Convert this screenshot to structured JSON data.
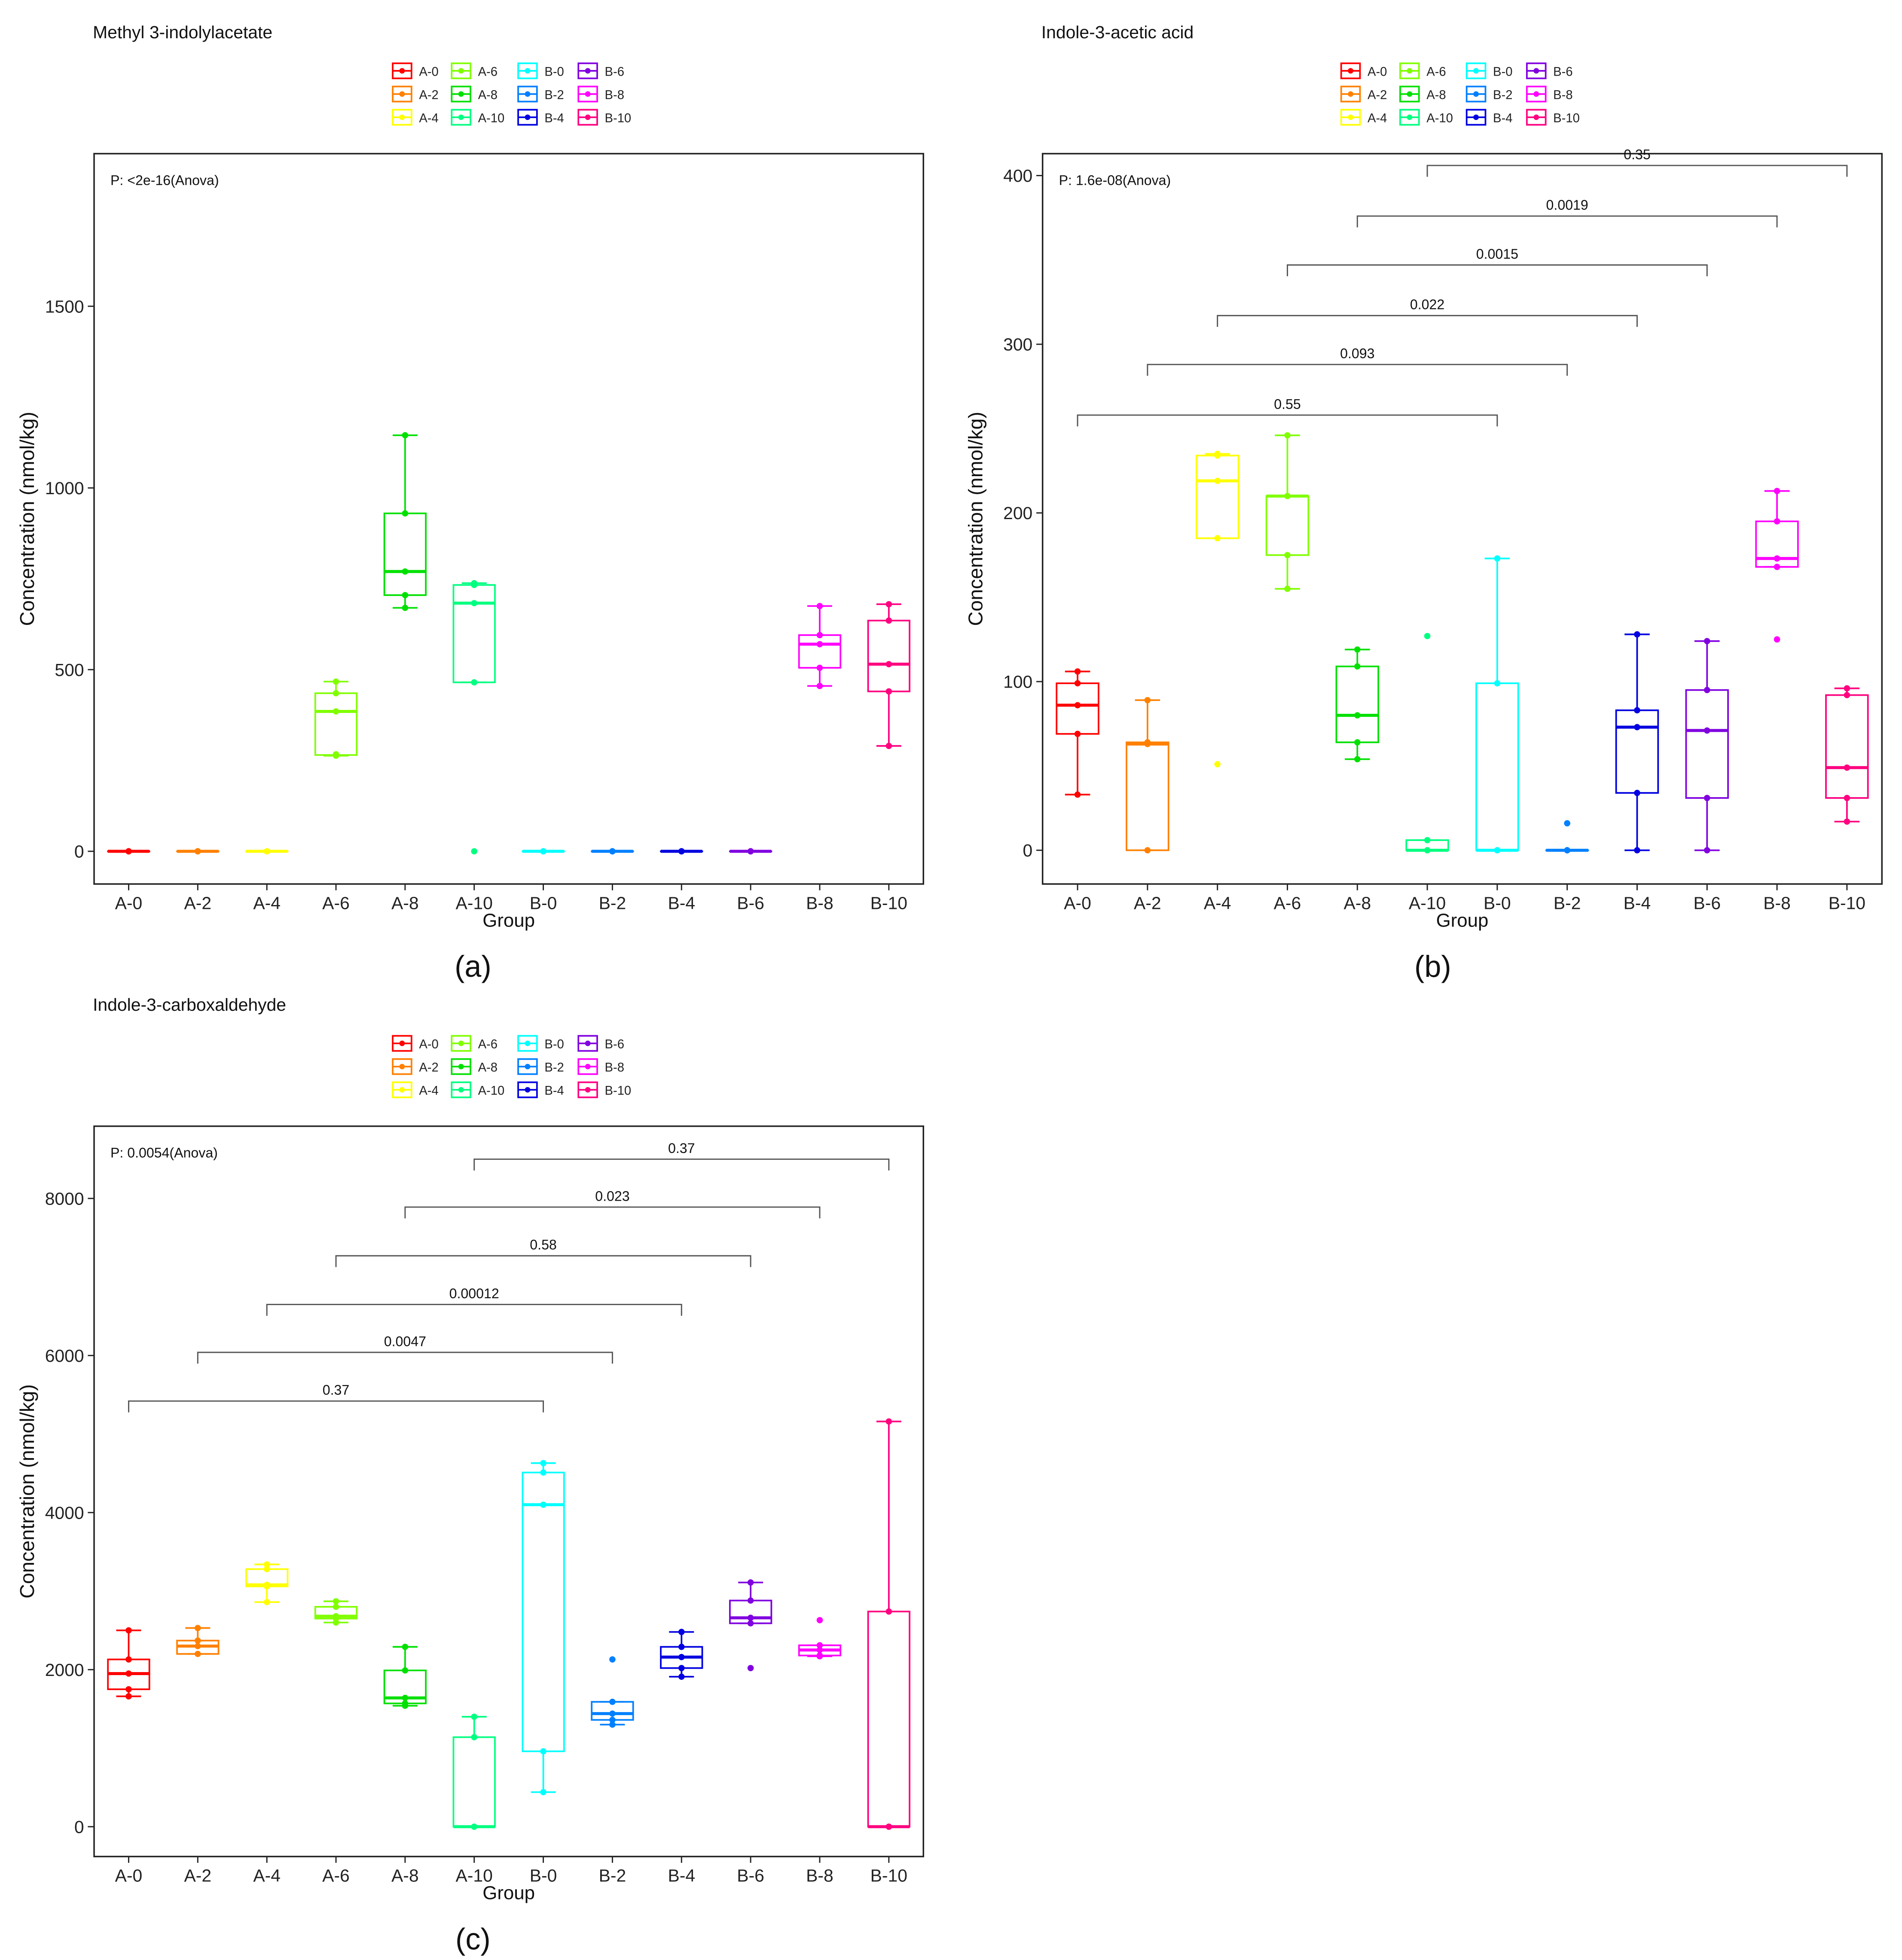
{
  "group_colors": {
    "A-0": "#FF0000",
    "A-2": "#FF8000",
    "A-4": "#FFFF00",
    "A-6": "#80FF00",
    "A-8": "#00E000",
    "A-10": "#00FF80",
    "B-0": "#00FFFF",
    "B-2": "#0080FF",
    "B-4": "#0000E0",
    "B-6": "#8000E0",
    "B-8": "#FF00FF",
    "B-10": "#FF0080"
  },
  "legend_items": [
    "A-0",
    "A-2",
    "A-4",
    "A-6",
    "A-8",
    "A-10",
    "B-0",
    "B-2",
    "B-4",
    "B-6",
    "B-8",
    "B-10"
  ],
  "chart_data": [
    {
      "type": "box",
      "panel_label": "(a)",
      "title": "Methyl 3-indolylacetate",
      "xlabel": "Group",
      "ylabel": "Concentration (nmol/kg)",
      "ylim": [
        -90,
        1920
      ],
      "yticks": [
        0,
        500,
        1000,
        1500
      ],
      "anova_text": "P: <2e-16(Anova)",
      "categories": [
        "A-0",
        "A-2",
        "A-4",
        "A-6",
        "A-8",
        "A-10",
        "B-0",
        "B-2",
        "B-4",
        "B-6",
        "B-8",
        "B-10"
      ],
      "boxes": [
        {
          "q1": 0,
          "median": 0,
          "q3": 0,
          "wlo": 0,
          "whi": 0,
          "points": [
            0,
            0,
            0,
            0,
            0
          ]
        },
        {
          "q1": 0,
          "median": 0,
          "q3": 0,
          "wlo": 0,
          "whi": 0,
          "points": [
            0,
            0,
            0,
            0,
            0
          ]
        },
        {
          "q1": 0,
          "median": 0,
          "q3": 0,
          "wlo": 0,
          "whi": 0,
          "points": [
            0,
            0,
            0,
            0,
            0
          ]
        },
        {
          "q1": 265,
          "median": 385,
          "q3": 435,
          "wlo": 263,
          "whi": 467,
          "points": [
            263,
            267,
            385,
            435,
            467
          ]
        },
        {
          "q1": 705,
          "median": 770,
          "q3": 930,
          "wlo": 670,
          "whi": 1145,
          "points": [
            670,
            705,
            770,
            930,
            1145
          ]
        },
        {
          "q1": 465,
          "median": 683,
          "q3": 733,
          "wlo": 465,
          "whi": 738,
          "points": [
            0,
            465,
            683,
            733,
            738
          ]
        },
        {
          "q1": 0,
          "median": 0,
          "q3": 0,
          "wlo": 0,
          "whi": 0,
          "points": [
            0,
            0,
            0,
            0,
            0
          ]
        },
        {
          "q1": 0,
          "median": 0,
          "q3": 0,
          "wlo": 0,
          "whi": 0,
          "points": [
            0,
            0,
            0,
            0,
            0
          ]
        },
        {
          "q1": 0,
          "median": 0,
          "q3": 0,
          "wlo": 0,
          "whi": 0,
          "points": [
            0,
            0,
            0,
            0,
            0
          ]
        },
        {
          "q1": 0,
          "median": 0,
          "q3": 0,
          "wlo": 0,
          "whi": 0,
          "points": [
            0,
            0,
            0,
            0,
            0
          ]
        },
        {
          "q1": 505,
          "median": 570,
          "q3": 595,
          "wlo": 455,
          "whi": 675,
          "points": [
            455,
            505,
            570,
            595,
            675
          ]
        },
        {
          "q1": 440,
          "median": 515,
          "q3": 635,
          "wlo": 290,
          "whi": 680,
          "points": [
            290,
            440,
            515,
            635,
            680
          ]
        }
      ],
      "comparisons": []
    },
    {
      "type": "box",
      "panel_label": "(b)",
      "title": "Indole-3-acetic acid",
      "xlabel": "Group",
      "ylabel": "Concentration (nmol/kg)",
      "ylim": [
        -20,
        413
      ],
      "yticks": [
        0,
        100,
        200,
        300,
        400
      ],
      "anova_text": "P: 1.6e-08(Anova)",
      "categories": [
        "A-0",
        "A-2",
        "A-4",
        "A-6",
        "A-8",
        "A-10",
        "B-0",
        "B-2",
        "B-4",
        "B-6",
        "B-8",
        "B-10"
      ],
      "boxes": [
        {
          "q1": 69,
          "median": 86,
          "q3": 99,
          "wlo": 33,
          "whi": 106,
          "points": [
            33,
            69,
            86,
            99,
            106
          ]
        },
        {
          "q1": 0,
          "median": 63,
          "q3": 64,
          "wlo": 0,
          "whi": 89,
          "points": [
            0,
            63,
            64,
            89
          ]
        },
        {
          "q1": 185,
          "median": 219,
          "q3": 234,
          "wlo": 185,
          "whi": 235,
          "points": [
            51,
            185,
            219,
            234,
            235
          ]
        },
        {
          "q1": 175,
          "median": 210,
          "q3": 210,
          "wlo": 155,
          "whi": 246,
          "points": [
            155,
            175,
            210,
            210,
            246
          ]
        },
        {
          "q1": 64,
          "median": 80,
          "q3": 109,
          "wlo": 54,
          "whi": 119,
          "points": [
            54,
            64,
            80,
            109,
            119
          ]
        },
        {
          "q1": 0,
          "median": 0,
          "q3": 6,
          "wlo": 0,
          "whi": 6,
          "points": [
            0,
            0,
            6,
            127
          ]
        },
        {
          "q1": 0,
          "median": 0,
          "q3": 99,
          "wlo": 0,
          "whi": 173,
          "points": [
            0,
            0,
            99,
            173
          ]
        },
        {
          "q1": 0,
          "median": 0,
          "q3": 0,
          "wlo": 0,
          "whi": 0,
          "points": [
            0,
            0,
            0,
            16
          ]
        },
        {
          "q1": 34,
          "median": 73,
          "q3": 83,
          "wlo": 0,
          "whi": 128,
          "points": [
            0,
            34,
            73,
            83,
            128
          ]
        },
        {
          "q1": 31,
          "median": 71,
          "q3": 95,
          "wlo": 0,
          "whi": 124,
          "points": [
            0,
            31,
            71,
            95,
            124
          ]
        },
        {
          "q1": 168,
          "median": 173,
          "q3": 195,
          "wlo": 168,
          "whi": 213,
          "points": [
            125,
            168,
            173,
            195,
            213
          ]
        },
        {
          "q1": 31,
          "median": 49,
          "q3": 92,
          "wlo": 17,
          "whi": 96,
          "points": [
            17,
            31,
            49,
            92,
            96
          ]
        }
      ],
      "comparisons": [
        {
          "from": 0,
          "to": 6,
          "y": 258,
          "label": "0.55"
        },
        {
          "from": 1,
          "to": 7,
          "y": 288,
          "label": "0.093"
        },
        {
          "from": 2,
          "to": 8,
          "y": 317,
          "label": "0.022"
        },
        {
          "from": 3,
          "to": 9,
          "y": 347,
          "label": "0.0015"
        },
        {
          "from": 4,
          "to": 10,
          "y": 376,
          "label": "0.0019"
        },
        {
          "from": 5,
          "to": 11,
          "y": 406,
          "label": "0.35"
        }
      ]
    },
    {
      "type": "box",
      "panel_label": "(c)",
      "title": "Indole-3-carboxaldehyde",
      "xlabel": "Group",
      "ylabel": "Concentration (nmol/kg)",
      "ylim": [
        -380,
        8920
      ],
      "yticks": [
        0,
        2000,
        4000,
        6000,
        8000
      ],
      "anova_text": "P: 0.0054(Anova)",
      "categories": [
        "A-0",
        "A-2",
        "A-4",
        "A-6",
        "A-8",
        "A-10",
        "B-0",
        "B-2",
        "B-4",
        "B-6",
        "B-8",
        "B-10"
      ],
      "boxes": [
        {
          "q1": 1750,
          "median": 1950,
          "q3": 2130,
          "wlo": 1660,
          "whi": 2500,
          "points": [
            1660,
            1750,
            1950,
            2130,
            2500
          ]
        },
        {
          "q1": 2200,
          "median": 2300,
          "q3": 2370,
          "wlo": 2200,
          "whi": 2530,
          "points": [
            2200,
            2300,
            2370,
            2530
          ]
        },
        {
          "q1": 3060,
          "median": 3080,
          "q3": 3280,
          "wlo": 2860,
          "whi": 3340,
          "points": [
            2860,
            3060,
            3080,
            3280,
            3340
          ]
        },
        {
          "q1": 2650,
          "median": 2680,
          "q3": 2800,
          "wlo": 2600,
          "whi": 2870,
          "points": [
            2600,
            2650,
            2680,
            2800,
            2870
          ]
        },
        {
          "q1": 1570,
          "median": 1640,
          "q3": 1990,
          "wlo": 1540,
          "whi": 2290,
          "points": [
            1540,
            1570,
            1640,
            1990,
            2290
          ]
        },
        {
          "q1": 0,
          "median": 0,
          "q3": 1140,
          "wlo": 0,
          "whi": 1400,
          "points": [
            0,
            0,
            1140,
            1400
          ]
        },
        {
          "q1": 960,
          "median": 4100,
          "q3": 4510,
          "wlo": 440,
          "whi": 4630,
          "points": [
            440,
            960,
            4100,
            4510,
            4630
          ]
        },
        {
          "q1": 1360,
          "median": 1440,
          "q3": 1590,
          "wlo": 1300,
          "whi": 1590,
          "points": [
            1300,
            1360,
            1440,
            1590,
            2130
          ]
        },
        {
          "q1": 2020,
          "median": 2160,
          "q3": 2290,
          "wlo": 1910,
          "whi": 2480,
          "points": [
            1910,
            2020,
            2160,
            2290,
            2480
          ]
        },
        {
          "q1": 2590,
          "median": 2660,
          "q3": 2880,
          "wlo": 2590,
          "whi": 3110,
          "points": [
            2020,
            2590,
            2660,
            2880,
            3110
          ]
        },
        {
          "q1": 2180,
          "median": 2250,
          "q3": 2310,
          "wlo": 2170,
          "whi": 2310,
          "points": [
            2170,
            2180,
            2250,
            2310,
            2630
          ]
        },
        {
          "q1": 0,
          "median": 0,
          "q3": 2740,
          "wlo": 0,
          "whi": 5160,
          "points": [
            0,
            0,
            2740,
            5160
          ]
        }
      ],
      "comparisons": [
        {
          "from": 0,
          "to": 6,
          "y": 5420,
          "label": "0.37"
        },
        {
          "from": 1,
          "to": 7,
          "y": 6040,
          "label": "0.0047"
        },
        {
          "from": 2,
          "to": 8,
          "y": 6650,
          "label": "0.00012"
        },
        {
          "from": 3,
          "to": 9,
          "y": 7270,
          "label": "0.58"
        },
        {
          "from": 4,
          "to": 10,
          "y": 7890,
          "label": "0.023"
        },
        {
          "from": 5,
          "to": 11,
          "y": 8500,
          "label": "0.37"
        }
      ]
    }
  ]
}
